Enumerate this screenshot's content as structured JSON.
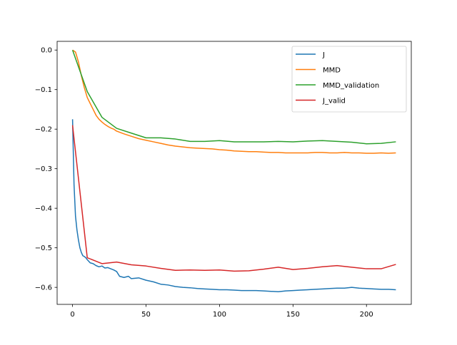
{
  "chart_data": {
    "type": "line",
    "title": "",
    "xlabel": "",
    "ylabel": "",
    "xlim": [
      -10.5,
      230.5
    ],
    "ylim": [
      -0.643,
      0.022
    ],
    "xticks": [
      0,
      50,
      100,
      150,
      200
    ],
    "yticks": [
      0.0,
      -0.1,
      -0.2,
      -0.3,
      -0.4,
      -0.5,
      -0.6
    ],
    "ytick_labels": [
      "0.0",
      "−0.1",
      "−0.2",
      "−0.3",
      "−0.4",
      "−0.5",
      "−0.6"
    ],
    "grid": false,
    "legend": "top-right",
    "series": [
      {
        "name": "J",
        "color": "#1f77b4",
        "x": [
          0,
          1,
          2,
          3,
          4,
          5,
          6,
          7,
          8,
          9,
          10,
          12,
          14,
          16,
          18,
          20,
          22,
          24,
          26,
          28,
          30,
          32,
          35,
          38,
          40,
          45,
          50,
          55,
          60,
          65,
          70,
          75,
          80,
          85,
          90,
          95,
          100,
          105,
          110,
          115,
          120,
          125,
          130,
          135,
          140,
          145,
          150,
          155,
          160,
          165,
          170,
          175,
          180,
          185,
          190,
          195,
          200,
          205,
          210,
          215,
          220
        ],
        "y": [
          -0.175,
          -0.34,
          -0.42,
          -0.455,
          -0.48,
          -0.5,
          -0.512,
          -0.52,
          -0.522,
          -0.525,
          -0.53,
          -0.538,
          -0.54,
          -0.545,
          -0.548,
          -0.546,
          -0.551,
          -0.55,
          -0.553,
          -0.556,
          -0.56,
          -0.572,
          -0.575,
          -0.572,
          -0.578,
          -0.576,
          -0.582,
          -0.586,
          -0.592,
          -0.594,
          -0.598,
          -0.6,
          -0.601,
          -0.603,
          -0.604,
          -0.605,
          -0.606,
          -0.606,
          -0.607,
          -0.608,
          -0.608,
          -0.608,
          -0.609,
          -0.61,
          -0.611,
          -0.609,
          -0.608,
          -0.607,
          -0.606,
          -0.605,
          -0.604,
          -0.603,
          -0.602,
          -0.602,
          -0.6,
          -0.602,
          -0.603,
          -0.604,
          -0.605,
          -0.605,
          -0.606
        ]
      },
      {
        "name": "MMD",
        "color": "#ff7f0e",
        "x": [
          0,
          2,
          4,
          6,
          8,
          10,
          12,
          14,
          16,
          18,
          20,
          22,
          24,
          26,
          28,
          30,
          35,
          40,
          45,
          50,
          55,
          60,
          65,
          70,
          75,
          80,
          85,
          90,
          95,
          100,
          105,
          110,
          115,
          120,
          125,
          130,
          135,
          140,
          145,
          150,
          155,
          160,
          165,
          170,
          175,
          180,
          185,
          190,
          195,
          200,
          205,
          210,
          215,
          220
        ],
        "y": [
          0.0,
          -0.005,
          -0.03,
          -0.065,
          -0.095,
          -0.12,
          -0.135,
          -0.15,
          -0.165,
          -0.175,
          -0.182,
          -0.188,
          -0.193,
          -0.197,
          -0.2,
          -0.205,
          -0.212,
          -0.218,
          -0.224,
          -0.228,
          -0.232,
          -0.236,
          -0.24,
          -0.243,
          -0.245,
          -0.247,
          -0.248,
          -0.249,
          -0.25,
          -0.252,
          -0.253,
          -0.255,
          -0.256,
          -0.257,
          -0.257,
          -0.258,
          -0.259,
          -0.259,
          -0.26,
          -0.26,
          -0.26,
          -0.26,
          -0.259,
          -0.259,
          -0.26,
          -0.26,
          -0.259,
          -0.26,
          -0.26,
          -0.261,
          -0.261,
          -0.26,
          -0.261,
          -0.26
        ]
      },
      {
        "name": "MMD_validation",
        "color": "#2ca02c",
        "x": [
          0,
          10,
          20,
          30,
          40,
          50,
          60,
          70,
          80,
          90,
          100,
          110,
          120,
          130,
          140,
          150,
          160,
          170,
          180,
          190,
          200,
          210,
          220
        ],
        "y": [
          0.0,
          -0.105,
          -0.17,
          -0.198,
          -0.21,
          -0.222,
          -0.222,
          -0.225,
          -0.231,
          -0.231,
          -0.229,
          -0.232,
          -0.232,
          -0.232,
          -0.231,
          -0.232,
          -0.23,
          -0.229,
          -0.231,
          -0.233,
          -0.237,
          -0.236,
          -0.232
        ]
      },
      {
        "name": "J_valid",
        "color": "#d62728",
        "x": [
          0,
          10,
          20,
          30,
          40,
          50,
          60,
          70,
          80,
          90,
          100,
          110,
          120,
          130,
          140,
          150,
          160,
          170,
          180,
          190,
          200,
          210,
          220
        ],
        "y": [
          -0.19,
          -0.525,
          -0.54,
          -0.536,
          -0.543,
          -0.546,
          -0.552,
          -0.557,
          -0.556,
          -0.557,
          -0.556,
          -0.559,
          -0.558,
          -0.554,
          -0.549,
          -0.555,
          -0.552,
          -0.548,
          -0.545,
          -0.549,
          -0.553,
          -0.553,
          -0.542
        ]
      }
    ]
  }
}
